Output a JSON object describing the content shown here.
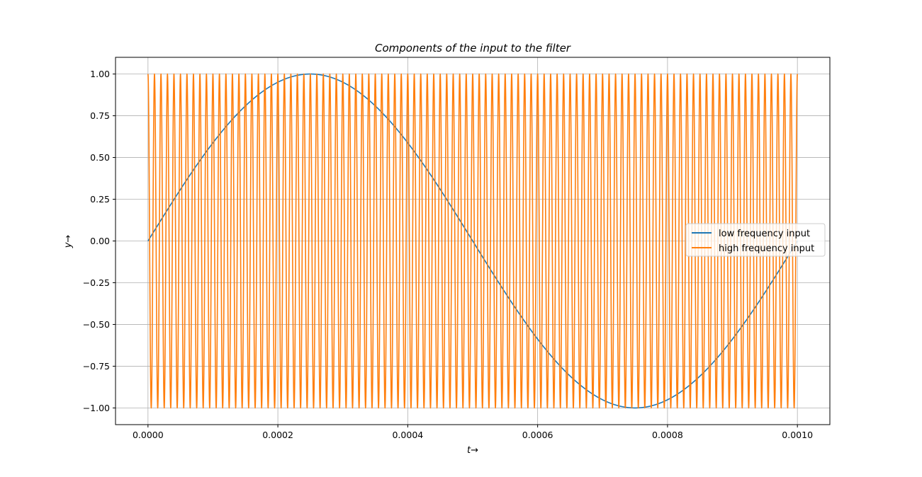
{
  "chart_data": {
    "type": "line",
    "title": "Components of the input to the filter",
    "xlabel": "t→",
    "ylabel": "y→",
    "xlim": [
      -5e-05,
      0.00105
    ],
    "ylim": [
      -1.1,
      1.1
    ],
    "x_ticks": [
      0.0,
      0.0002,
      0.0004,
      0.0006,
      0.0008,
      0.001
    ],
    "x_tick_labels": [
      "0.0000",
      "0.0002",
      "0.0004",
      "0.0006",
      "0.0008",
      "0.0010"
    ],
    "y_ticks": [
      1.0,
      0.75,
      0.5,
      0.25,
      0.0,
      -0.25,
      -0.5,
      -0.75,
      -1.0
    ],
    "y_tick_labels": [
      "1.00",
      "0.75",
      "0.50",
      "0.25",
      "0.00",
      "−0.25",
      "−0.50",
      "−0.75",
      "−1.00"
    ],
    "grid": true,
    "legend_position": "center-right",
    "series": [
      {
        "name": "low frequency input",
        "color": "#1f77b4",
        "function": "sin",
        "frequency_hz": 1000,
        "amplitude": 1.0,
        "x_range": [
          0.0,
          0.001
        ],
        "x_sample": [
          0.0,
          0.00025,
          0.0005,
          0.00075,
          0.001
        ],
        "y_sample": [
          0.0,
          1.0,
          0.0,
          -1.0,
          0.0
        ]
      },
      {
        "name": "high frequency input",
        "color": "#ff7f0e",
        "function": "cos",
        "frequency_hz": 100000,
        "amplitude": 1.0,
        "x_range": [
          0.0,
          0.001
        ],
        "x_sample": [
          0.0,
          5e-06,
          1e-05
        ],
        "y_sample": [
          1.0,
          -1.0,
          1.0
        ]
      }
    ]
  }
}
